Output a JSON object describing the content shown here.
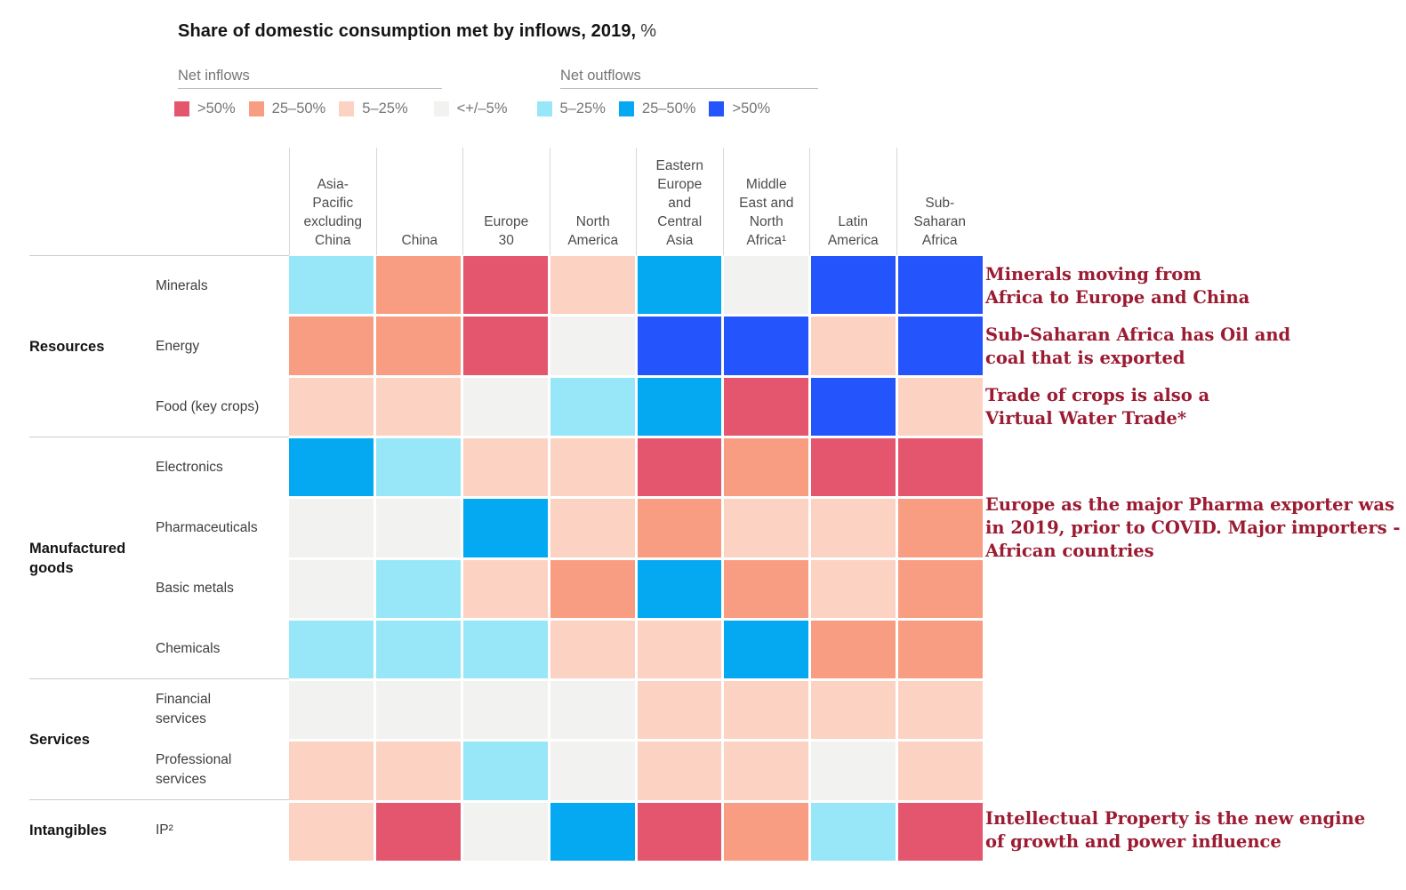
{
  "title": {
    "main": "Share of domestic consumption met by inflows, 2019,",
    "unit": "%"
  },
  "legend": {
    "inflows_label": "Net inflows",
    "outflows_label": "Net outflows",
    "items": [
      {
        "key": "in50",
        "label": ">50%"
      },
      {
        "key": "in25",
        "label": "25–50%"
      },
      {
        "key": "in5",
        "label": "5–25%"
      },
      {
        "key": "neu",
        "label": "<+/–5%"
      },
      {
        "key": "out5",
        "label": "5–25%"
      },
      {
        "key": "out25",
        "label": "25–50%"
      },
      {
        "key": "out50",
        "label": ">50%"
      }
    ]
  },
  "chart_data": {
    "type": "heatmap",
    "title": "Share of domestic consumption met by inflows, 2019, %",
    "legend_position": "top",
    "columns": [
      "Asia-\nPacific\nexcluding\nChina",
      "China",
      "Europe\n30",
      "North\nAmerica",
      "Eastern\nEurope\nand\nCentral\nAsia",
      "Middle\nEast and\nNorth\nAfrica¹",
      "Latin\nAmerica",
      "Sub-\nSaharan\nAfrica"
    ],
    "scale": {
      "in50": {
        "flow": "Net inflows",
        "range": ">50%",
        "color": "#e4566e"
      },
      "in25": {
        "flow": "Net inflows",
        "range": "25–50%",
        "color": "#f99d82"
      },
      "in5": {
        "flow": "Net inflows",
        "range": "5–25%",
        "color": "#fcd2c3"
      },
      "neu": {
        "flow": "Neutral",
        "range": "<+/–5%",
        "color": "#f2f2f1"
      },
      "out5": {
        "flow": "Net outflows",
        "range": "5–25%",
        "color": "#97e7f8"
      },
      "out25": {
        "flow": "Net outflows",
        "range": "25–50%",
        "color": "#04a9f2"
      },
      "out50": {
        "flow": "Net outflows",
        "range": ">50%",
        "color": "#2454fb"
      }
    },
    "row_groups": [
      {
        "group": "Resources",
        "rows": [
          {
            "label": "Minerals",
            "values": [
              "out5",
              "in25",
              "in50",
              "in5",
              "out25",
              "neu",
              "out50",
              "out50"
            ]
          },
          {
            "label": "Energy",
            "values": [
              "in25",
              "in25",
              "in50",
              "neu",
              "out50",
              "out50",
              "in5",
              "out50"
            ]
          },
          {
            "label": "Food (key crops)",
            "values": [
              "in5",
              "in5",
              "neu",
              "out5",
              "out25",
              "in50",
              "out50",
              "in5"
            ]
          }
        ]
      },
      {
        "group": "Manufactured\ngoods",
        "rows": [
          {
            "label": "Electronics",
            "values": [
              "out25",
              "out5",
              "in5",
              "in5",
              "in50",
              "in25",
              "in50",
              "in50"
            ]
          },
          {
            "label": "Pharmaceuticals",
            "values": [
              "neu",
              "neu",
              "out25",
              "in5",
              "in25",
              "in5",
              "in5",
              "in25"
            ]
          },
          {
            "label": "Basic metals",
            "values": [
              "neu",
              "out5",
              "in5",
              "in25",
              "out25",
              "in25",
              "in5",
              "in25"
            ]
          },
          {
            "label": "Chemicals",
            "values": [
              "out5",
              "out5",
              "out5",
              "in5",
              "in5",
              "out25",
              "in25",
              "in25"
            ]
          }
        ]
      },
      {
        "group": "Services",
        "rows": [
          {
            "label": "Financial\nservices",
            "values": [
              "neu",
              "neu",
              "neu",
              "neu",
              "in5",
              "in5",
              "in5",
              "in5"
            ]
          },
          {
            "label": "Professional\nservices",
            "values": [
              "in5",
              "in5",
              "out5",
              "neu",
              "in5",
              "in5",
              "neu",
              "in5"
            ]
          }
        ]
      },
      {
        "group": "Intangibles",
        "rows": [
          {
            "label": "IP²",
            "values": [
              "in5",
              "in50",
              "neu",
              "out25",
              "in50",
              "in25",
              "out5",
              "in50"
            ]
          }
        ]
      }
    ]
  },
  "annotations": [
    {
      "row": "Minerals",
      "lines": [
        "Minerals moving from",
        "Africa to Europe and China"
      ]
    },
    {
      "row": "Energy",
      "lines": [
        "Sub-Saharan Africa has Oil and",
        "coal that is exported"
      ]
    },
    {
      "row": "Food (key crops)",
      "lines": [
        "Trade of crops is also a",
        "Virtual Water Trade*"
      ]
    },
    {
      "row": "Pharmaceuticals",
      "lines": [
        "Europe as the major Pharma exporter was",
        "in 2019, prior to COVID. Major importers -",
        "African countries"
      ]
    },
    {
      "row": "IP²",
      "lines": [
        "Intellectual Property is the new engine",
        "of growth and power influence"
      ]
    }
  ]
}
